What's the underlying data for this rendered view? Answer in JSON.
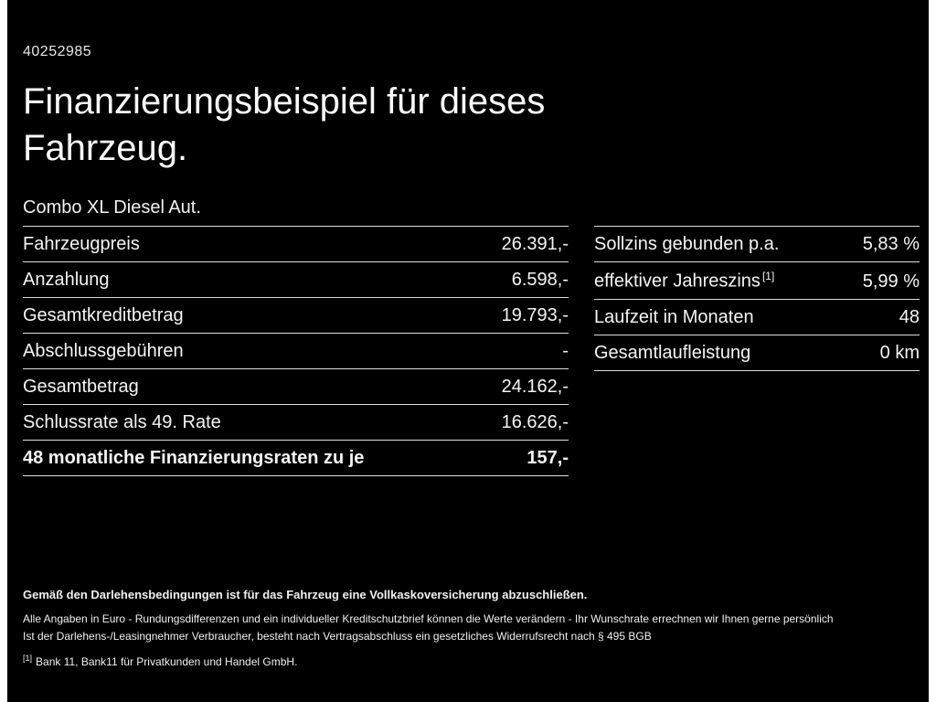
{
  "page": {
    "id_number": "40252985",
    "title_line1": "Finanzierungsbeispiel für dieses",
    "title_line2": "Fahrzeug.",
    "subtitle": "Combo XL Diesel Aut."
  },
  "left_table": {
    "rows": [
      {
        "label": "Fahrzeugpreis",
        "value": "26.391,-"
      },
      {
        "label": "Anzahlung",
        "value": "6.598,-"
      },
      {
        "label": "Gesamtkreditbetrag",
        "value": "19.793,-"
      },
      {
        "label": "Abschlussgebühren",
        "value": "-"
      },
      {
        "label": "Gesamtbetrag",
        "value": "24.162,-"
      },
      {
        "label": "Schlussrate als 49. Rate",
        "value": "16.626,-"
      },
      {
        "label": "48 monatliche Finanzierungsraten zu je",
        "value": "157,-"
      }
    ]
  },
  "right_table": {
    "rows": [
      {
        "label": "Sollzins gebunden p.a.",
        "sup": "",
        "value": "5,83 %"
      },
      {
        "label": "effektiver Jahreszins",
        "sup": "[1]",
        "value": "5,99 %"
      },
      {
        "label": "Laufzeit in Monaten",
        "sup": "",
        "value": "48"
      },
      {
        "label": "Gesamtlaufleistung",
        "sup": "",
        "value": "0 km"
      }
    ]
  },
  "footer": {
    "line1": "Gemäß den Darlehensbedingungen ist für das Fahrzeug eine Vollkaskoversicherung abzuschließen.",
    "line2": "Alle Angaben in Euro - Rundungsdifferenzen und ein individueller Kreditschutzbrief können die Werte verändern - Ihr Wunschrate errechnen wir Ihnen gerne persönlich",
    "line3": "Ist der Darlehens-/Leasingnehmer Verbraucher, besteht nach Vertragsabschluss ein gesetzliches Widerrufsrecht nach § 495 BGB",
    "footnote_marker": "[1]",
    "footnote_text": "Bank 11, Bank11 für Privatkunden und Handel GmbH."
  },
  "colors": {
    "background": "#000000",
    "text": "#f5f5f5",
    "divider": "#dcdcdc",
    "edge_bar": "#ffffff"
  }
}
